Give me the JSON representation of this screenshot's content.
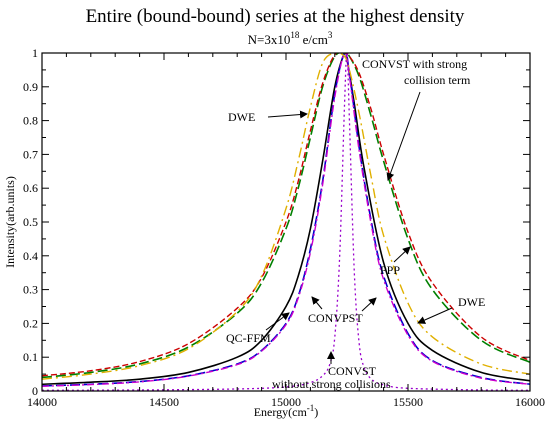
{
  "chart_data": {
    "type": "line",
    "title": "Entire (bound-bound) series at the highest density",
    "subtitle": {
      "prefix": "N=3x10",
      "exponent": "18",
      "unit": " e/cm",
      "unit_exponent": "3"
    },
    "xlabel": "Energy(cm",
    "xlabel_exponent": "-1",
    "xlabel_suffix": ")",
    "ylabel": "Intensity(arb.units)",
    "xlim": [
      14000,
      16000
    ],
    "ylim": [
      0,
      1
    ],
    "xticks": [
      "14000",
      "14500",
      "15000",
      "15500",
      "16000"
    ],
    "yticks": [
      "0",
      "0.1",
      "0.2",
      "0.3",
      "0.4",
      "0.5",
      "0.6",
      "0.7",
      "0.8",
      "0.9",
      "1"
    ],
    "grid": false,
    "series": [
      {
        "key": "qcffm",
        "color": "#000000",
        "dash": "",
        "width": 1.6,
        "x": [
          14000,
          14200,
          14400,
          14600,
          14800,
          14900,
          15000,
          15050,
          15100,
          15150,
          15200,
          15240,
          15250,
          15280,
          15320,
          15400,
          15500,
          15600,
          15800,
          16000
        ],
        "y": [
          0.02,
          0.026,
          0.035,
          0.055,
          0.1,
          0.15,
          0.25,
          0.34,
          0.48,
          0.68,
          0.9,
          1.0,
          0.98,
          0.85,
          0.66,
          0.38,
          0.2,
          0.12,
          0.055,
          0.03
        ]
      },
      {
        "key": "convpst",
        "color": "#0000cc",
        "dash": "10,4",
        "width": 1.6,
        "x": [
          14000,
          14200,
          14400,
          14600,
          14800,
          14900,
          15000,
          15050,
          15100,
          15150,
          15200,
          15240,
          15260,
          15300,
          15350,
          15400,
          15500,
          15600,
          15800,
          16000
        ],
        "y": [
          0.015,
          0.02,
          0.028,
          0.045,
          0.08,
          0.12,
          0.2,
          0.28,
          0.42,
          0.62,
          0.88,
          1.0,
          0.94,
          0.72,
          0.5,
          0.34,
          0.17,
          0.09,
          0.04,
          0.02
        ]
      },
      {
        "key": "ppp",
        "color": "#cc00cc",
        "dash": "7,3,2,3",
        "width": 1.4,
        "x": [
          14000,
          14200,
          14400,
          14600,
          14800,
          14900,
          15000,
          15050,
          15100,
          15150,
          15200,
          15240,
          15260,
          15300,
          15350,
          15400,
          15500,
          15600,
          15800,
          16000
        ],
        "y": [
          0.014,
          0.019,
          0.027,
          0.044,
          0.078,
          0.118,
          0.196,
          0.275,
          0.41,
          0.61,
          0.87,
          1.0,
          0.93,
          0.71,
          0.49,
          0.33,
          0.165,
          0.088,
          0.038,
          0.02
        ]
      },
      {
        "key": "convst_strong",
        "color": "#008000",
        "dash": "10,4",
        "width": 1.6,
        "x": [
          14000,
          14200,
          14400,
          14600,
          14800,
          14900,
          15000,
          15050,
          15100,
          15150,
          15200,
          15240,
          15260,
          15300,
          15350,
          15400,
          15500,
          15600,
          15800,
          16000
        ],
        "y": [
          0.04,
          0.055,
          0.08,
          0.13,
          0.23,
          0.32,
          0.48,
          0.6,
          0.75,
          0.9,
          0.99,
          1.0,
          0.99,
          0.93,
          0.81,
          0.68,
          0.45,
          0.3,
          0.15,
          0.085
        ]
      },
      {
        "key": "dwe_red",
        "color": "#cc0000",
        "dash": "6,3",
        "width": 1.4,
        "x": [
          14000,
          14200,
          14400,
          14600,
          14800,
          14900,
          15000,
          15050,
          15100,
          15150,
          15200,
          15240,
          15260,
          15300,
          15350,
          15400,
          15500,
          15600,
          15800,
          16000
        ],
        "y": [
          0.045,
          0.06,
          0.087,
          0.14,
          0.245,
          0.335,
          0.5,
          0.62,
          0.77,
          0.91,
          0.995,
          1.0,
          0.99,
          0.94,
          0.83,
          0.7,
          0.47,
          0.32,
          0.16,
          0.09
        ]
      },
      {
        "key": "dwe_orange",
        "color": "#e0b000",
        "dash": "10,4,2,4",
        "width": 1.4,
        "x": [
          14000,
          14200,
          14400,
          14600,
          14800,
          14900,
          15000,
          15050,
          15100,
          15150,
          15200,
          15240,
          15260,
          15300,
          15350,
          15400,
          15500,
          15600,
          15800,
          16000
        ],
        "y": [
          0.035,
          0.05,
          0.075,
          0.125,
          0.235,
          0.34,
          0.54,
          0.68,
          0.84,
          0.97,
          1.0,
          0.99,
          0.95,
          0.82,
          0.63,
          0.46,
          0.26,
          0.16,
          0.08,
          0.05
        ]
      },
      {
        "key": "convst_nocoll",
        "color": "#9900cc",
        "dash": "2,3",
        "width": 1.3,
        "x": [
          14000,
          14400,
          14800,
          15000,
          15100,
          15150,
          15180,
          15200,
          15220,
          15240,
          15250,
          15260,
          15280,
          15300,
          15320,
          15350,
          15400,
          15500,
          15800,
          16000
        ],
        "y": [
          0.002,
          0.003,
          0.006,
          0.012,
          0.025,
          0.045,
          0.08,
          0.16,
          0.4,
          0.85,
          1.0,
          0.8,
          0.35,
          0.14,
          0.07,
          0.035,
          0.018,
          0.008,
          0.003,
          0.002
        ]
      }
    ],
    "annotations": [
      {
        "key": "dwe_top",
        "lines": [
          "DWE"
        ]
      },
      {
        "key": "convst_strong",
        "lines": [
          "CONVST with strong",
          "collision term"
        ]
      },
      {
        "key": "ppp",
        "lines": [
          "PPP"
        ]
      },
      {
        "key": "dwe_right",
        "lines": [
          "DWE"
        ]
      },
      {
        "key": "convpst",
        "lines": [
          "CONVPST"
        ]
      },
      {
        "key": "qcffm",
        "lines": [
          "QC-FFM"
        ]
      },
      {
        "key": "convst_nocoll",
        "lines": [
          "CONVST",
          "without strong collisions"
        ]
      }
    ]
  }
}
